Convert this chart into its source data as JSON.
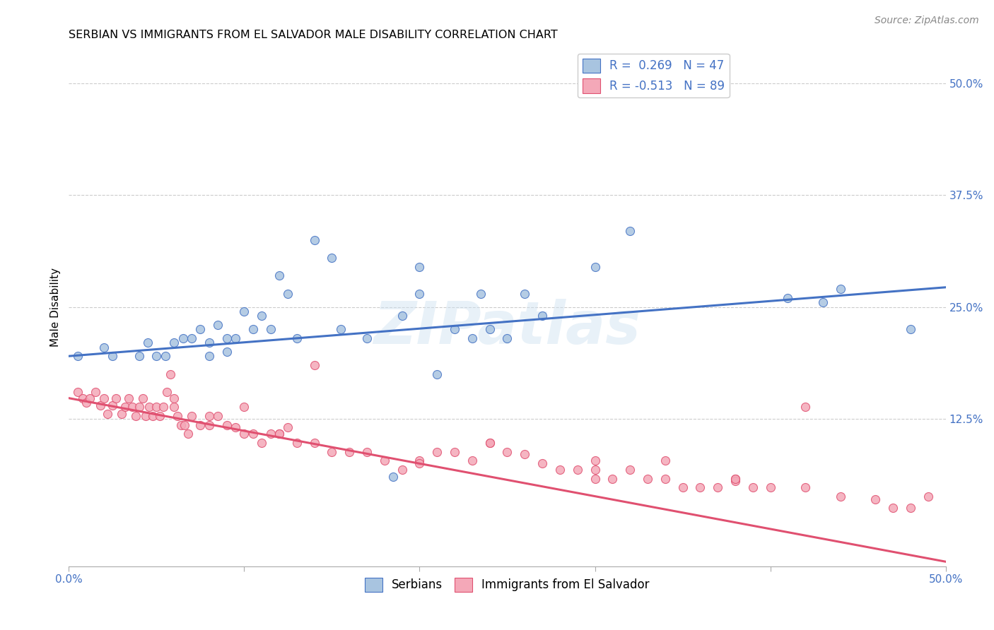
{
  "title": "SERBIAN VS IMMIGRANTS FROM EL SALVADOR MALE DISABILITY CORRELATION CHART",
  "source": "Source: ZipAtlas.com",
  "ylabel": "Male Disability",
  "xlim": [
    0.0,
    0.5
  ],
  "ylim": [
    -0.04,
    0.54
  ],
  "series1_color": "#a8c4e0",
  "series2_color": "#f4a8b8",
  "line1_color": "#4472c4",
  "line2_color": "#e05070",
  "legend_R1": "R =  0.269",
  "legend_N1": "N = 47",
  "legend_R2": "R = -0.513",
  "legend_N2": "N = 89",
  "watermark": "ZIPatlas",
  "series1_name": "Serbians",
  "series2_name": "Immigrants from El Salvador",
  "line1_x": [
    0.0,
    0.5
  ],
  "line1_y": [
    0.195,
    0.272
  ],
  "line2_x": [
    0.0,
    0.5
  ],
  "line2_y": [
    0.148,
    -0.035
  ],
  "scatter1_x": [
    0.005,
    0.02,
    0.025,
    0.04,
    0.045,
    0.05,
    0.055,
    0.06,
    0.065,
    0.07,
    0.075,
    0.08,
    0.085,
    0.09,
    0.09,
    0.095,
    0.1,
    0.105,
    0.11,
    0.115,
    0.12,
    0.125,
    0.13,
    0.14,
    0.15,
    0.155,
    0.17,
    0.185,
    0.2,
    0.21,
    0.22,
    0.23,
    0.235,
    0.24,
    0.25,
    0.26,
    0.27,
    0.3,
    0.32,
    0.35,
    0.41,
    0.43,
    0.44,
    0.2,
    0.48,
    0.19,
    0.08
  ],
  "scatter1_y": [
    0.195,
    0.205,
    0.195,
    0.195,
    0.21,
    0.195,
    0.195,
    0.21,
    0.215,
    0.215,
    0.225,
    0.21,
    0.23,
    0.215,
    0.2,
    0.215,
    0.245,
    0.225,
    0.24,
    0.225,
    0.285,
    0.265,
    0.215,
    0.325,
    0.305,
    0.225,
    0.215,
    0.06,
    0.295,
    0.175,
    0.225,
    0.215,
    0.265,
    0.225,
    0.215,
    0.265,
    0.24,
    0.295,
    0.335,
    0.5,
    0.26,
    0.255,
    0.27,
    0.265,
    0.225,
    0.24,
    0.195
  ],
  "scatter2_x": [
    0.005,
    0.008,
    0.01,
    0.012,
    0.015,
    0.018,
    0.02,
    0.022,
    0.025,
    0.027,
    0.03,
    0.032,
    0.034,
    0.036,
    0.038,
    0.04,
    0.042,
    0.044,
    0.046,
    0.048,
    0.05,
    0.052,
    0.054,
    0.056,
    0.058,
    0.06,
    0.062,
    0.064,
    0.066,
    0.068,
    0.07,
    0.075,
    0.08,
    0.085,
    0.09,
    0.095,
    0.1,
    0.105,
    0.11,
    0.115,
    0.12,
    0.125,
    0.13,
    0.14,
    0.15,
    0.16,
    0.17,
    0.18,
    0.19,
    0.2,
    0.21,
    0.22,
    0.23,
    0.24,
    0.25,
    0.26,
    0.27,
    0.28,
    0.29,
    0.3,
    0.31,
    0.32,
    0.33,
    0.34,
    0.35,
    0.36,
    0.37,
    0.38,
    0.39,
    0.4,
    0.42,
    0.44,
    0.46,
    0.47,
    0.48,
    0.49,
    0.14,
    0.2,
    0.24,
    0.3,
    0.34,
    0.38,
    0.3,
    0.1,
    0.12,
    0.08,
    0.06,
    0.38,
    0.42
  ],
  "scatter2_y": [
    0.155,
    0.148,
    0.143,
    0.148,
    0.155,
    0.14,
    0.148,
    0.13,
    0.14,
    0.148,
    0.13,
    0.138,
    0.148,
    0.138,
    0.128,
    0.138,
    0.148,
    0.128,
    0.138,
    0.128,
    0.138,
    0.128,
    0.138,
    0.155,
    0.175,
    0.138,
    0.128,
    0.118,
    0.118,
    0.108,
    0.128,
    0.118,
    0.118,
    0.128,
    0.118,
    0.115,
    0.108,
    0.108,
    0.098,
    0.108,
    0.108,
    0.115,
    0.098,
    0.098,
    0.088,
    0.088,
    0.088,
    0.078,
    0.068,
    0.078,
    0.088,
    0.088,
    0.078,
    0.098,
    0.088,
    0.085,
    0.075,
    0.068,
    0.068,
    0.058,
    0.058,
    0.068,
    0.058,
    0.058,
    0.048,
    0.048,
    0.048,
    0.058,
    0.048,
    0.048,
    0.048,
    0.038,
    0.035,
    0.025,
    0.025,
    0.038,
    0.185,
    0.075,
    0.098,
    0.068,
    0.078,
    0.055,
    0.078,
    0.138,
    0.108,
    0.128,
    0.148,
    0.058,
    0.138
  ]
}
